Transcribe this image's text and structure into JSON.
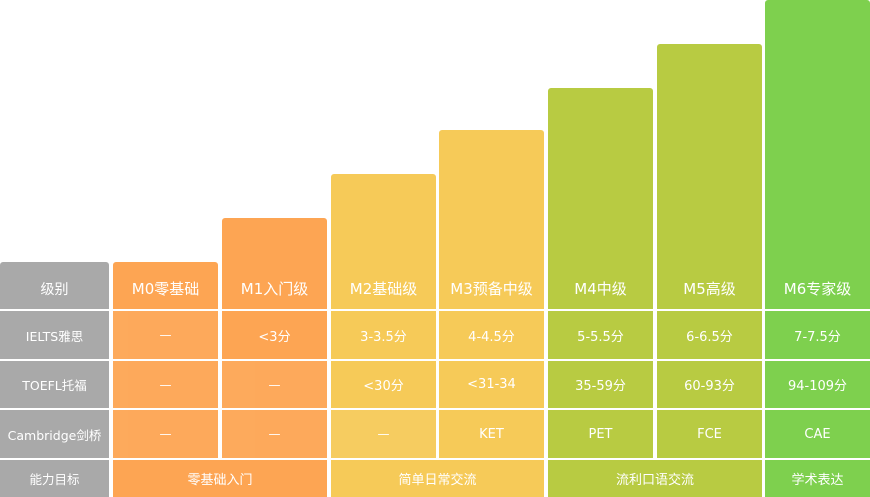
{
  "chart_data": {
    "type": "table",
    "title": "",
    "row_labels": [
      "级别",
      "IELTS雅思",
      "TOEFL托福",
      "Cambridge剑桥",
      "能力目标"
    ],
    "levels": [
      {
        "name": "M0零基础",
        "color": "#fda553",
        "ielts": "—",
        "toefl": "—",
        "cambridge": "—"
      },
      {
        "name": "M1入门级",
        "color": "#fda553",
        "ielts": "<3分",
        "toefl": "—",
        "cambridge": "—"
      },
      {
        "name": "M2基础级",
        "color": "#f6ca58",
        "ielts": "3-3.5分",
        "toefl": "<30分",
        "cambridge": "—"
      },
      {
        "name": "M3预备中级",
        "color": "#f6ca58",
        "ielts": "4-4.5分",
        "toefl": "<31-34",
        "cambridge": "KET"
      },
      {
        "name": "M4中级",
        "color": "#b8cb42",
        "ielts": "5-5.5分",
        "toefl": "35-59分",
        "cambridge": "PET"
      },
      {
        "name": "M5高级",
        "color": "#b8cb42",
        "ielts": "6-6.5分",
        "toefl": "60-93分",
        "cambridge": "FCE"
      },
      {
        "name": "M6专家级",
        "color": "#7ed04e",
        "ielts": "7-7.5分",
        "toefl": "94-109分",
        "cambridge": "CAE"
      }
    ],
    "goals": [
      {
        "label": "零基础入门",
        "span": [
          0,
          1
        ],
        "color": "#fda553"
      },
      {
        "label": "简单日常交流",
        "span": [
          2,
          3
        ],
        "color": "#f6ca58"
      },
      {
        "label": "流利口语交流",
        "span": [
          4,
          5
        ],
        "color": "#b8cb42"
      },
      {
        "label": "学术表达",
        "span": [
          6,
          6
        ],
        "color": "#7ed04e"
      }
    ]
  }
}
